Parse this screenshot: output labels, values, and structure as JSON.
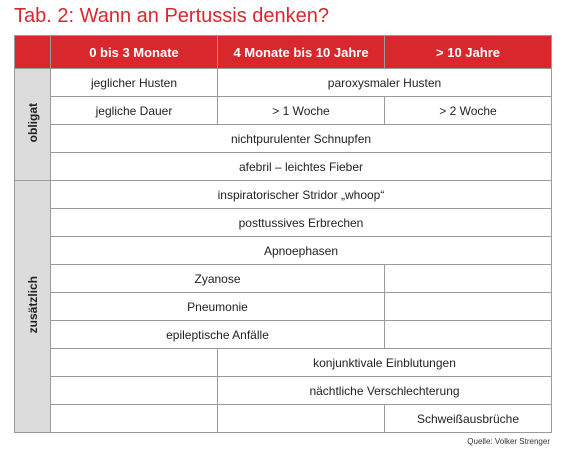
{
  "title": "Tab. 2: Wann an Pertussis denken?",
  "header": [
    "0 bis 3 Monate",
    "4 Monate bis 10 Jahre",
    "> 10 Jahre"
  ],
  "sections": [
    {
      "label": "obligat",
      "rows": [
        [
          "jeglicher Husten",
          "paroxysmaler Husten"
        ],
        [
          "jegliche Dauer",
          "> 1 Woche",
          "> 2 Woche"
        ],
        [
          "nichtpurulenter Schnupfen"
        ],
        [
          "afebril – leichtes Fieber"
        ]
      ]
    },
    {
      "label": "zusätzlich",
      "rows": [
        [
          "inspiratorischer Stridor „whoop“"
        ],
        [
          "posttussives Erbrechen"
        ],
        [
          "Apnoephasen"
        ],
        [
          "Zyanose"
        ],
        [
          "Pneumonie"
        ],
        [
          "epileptische Anfälle"
        ],
        [
          "konjunktivale Einblutungen"
        ],
        [
          "nächtliche Verschlechterung"
        ],
        [
          "Schweißausbrüche"
        ]
      ]
    }
  ],
  "source": "Quelle: Volker Strenger"
}
